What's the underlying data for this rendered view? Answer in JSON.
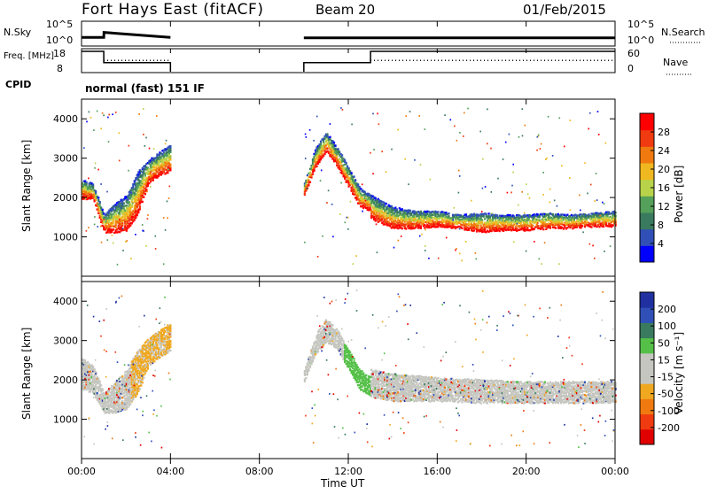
{
  "header": {
    "station": "Fort Hays East (fitACF)",
    "beam": "Beam 20",
    "date": "01/Feb/2015"
  },
  "mode_label": "normal (fast) 151 IF",
  "colors": {
    "gray": "#c6c6c0",
    "power_scale": [
      "#0000ff",
      "#3050b8",
      "#3a7a5e",
      "#55a05a",
      "#b8d34a",
      "#f0b820",
      "#f07a10",
      "#f03a10",
      "#ff0000"
    ],
    "velocity_scale": [
      "#e00000",
      "#f03a10",
      "#f07a10",
      "#f0a820",
      "#c6c6c0",
      "#c6c6c0",
      "#55c048",
      "#3a7a5e",
      "#3050b8",
      "#2030a0"
    ]
  },
  "chart_data": [
    {
      "type": "line",
      "panel": "noise",
      "ylabel_left": "N.Sky",
      "yticks_left": [
        "10^5",
        "10^0"
      ],
      "ylabel_right": "N.Search",
      "yticks_right": [
        "10^5",
        "10^0"
      ],
      "series": [
        {
          "segments": [
            {
              "x": [
                0.0,
                1.0,
                1.01,
                4.0
              ],
              "y": [
                0.35,
                0.35,
                0.55,
                0.35
              ]
            },
            {
              "x": [
                10.0,
                24.0
              ],
              "y": [
                0.33,
                0.33
              ]
            }
          ]
        }
      ]
    },
    {
      "type": "line",
      "panel": "frequency",
      "ylabel_left": "Freq. [MHz]",
      "yticks_left": [
        "18",
        "8"
      ],
      "ylabel_right": "Nave",
      "yticks_right": [
        "60",
        "0"
      ],
      "series": [
        {
          "style": "solid",
          "segments": [
            {
              "x": [
                0.0,
                1.0,
                1.0,
                4.0,
                4.0
              ],
              "y": [
                18,
                18,
                8,
                8,
                0
              ]
            },
            {
              "x": [
                10.0,
                10.0,
                13.0,
                13.0,
                24.0
              ],
              "y": [
                0,
                8,
                8,
                18,
                18
              ]
            }
          ]
        },
        {
          "style": "dotted",
          "segments": [
            {
              "x": [
                1.0,
                4.0
              ],
              "y": [
                10,
                10
              ]
            },
            {
              "x": [
                13.0,
                24.0
              ],
              "y": [
                10,
                10
              ]
            }
          ]
        }
      ]
    },
    {
      "type": "heatmap",
      "panel": "power",
      "ylabel": "Slant Range [km]",
      "ylim": [
        0,
        4500
      ],
      "yticks": [
        1000,
        2000,
        3000,
        4000
      ],
      "colorbar_label": "Power [dB]",
      "colorbar_ticks": [
        "4",
        "8",
        "12",
        "16",
        "20",
        "24",
        "28"
      ],
      "regions": [
        {
          "x": [
            0.0,
            0.5,
            1.0,
            1.5,
            2.0,
            2.5,
            3.0,
            3.5,
            4.0
          ],
          "low": [
            2000,
            2000,
            1150,
            1150,
            1200,
            1600,
            2400,
            2600,
            2700
          ],
          "high": [
            2500,
            2400,
            1600,
            1900,
            2100,
            2700,
            3000,
            3200,
            3400
          ]
        },
        {
          "x": [
            10.0,
            10.5,
            11.0,
            11.5,
            12.0,
            12.5,
            13.0
          ],
          "low": [
            2100,
            2800,
            3200,
            2800,
            2300,
            1800,
            1700
          ],
          "high": [
            2400,
            3300,
            3700,
            3300,
            2800,
            2300,
            2100
          ]
        },
        {
          "x": [
            13.0,
            14.0,
            15.0,
            16.0,
            17.0,
            18.0,
            19.0,
            20.0,
            21.0,
            22.0,
            23.0,
            24.0
          ],
          "low": [
            1500,
            1250,
            1250,
            1300,
            1250,
            1150,
            1200,
            1200,
            1250,
            1250,
            1300,
            1300
          ],
          "high": [
            2100,
            1800,
            1700,
            1700,
            1600,
            1650,
            1600,
            1600,
            1650,
            1600,
            1650,
            1700
          ]
        }
      ]
    },
    {
      "type": "heatmap",
      "panel": "velocity",
      "ylabel": "Slant Range [km]",
      "ylim": [
        0,
        4500
      ],
      "yticks": [
        1000,
        2000,
        3000,
        4000
      ],
      "xlabel": "Time UT",
      "xticks": [
        "00:00",
        "04:00",
        "08:00",
        "12:00",
        "16:00",
        "20:00",
        "00:00"
      ],
      "xlim": [
        0,
        24
      ],
      "colorbar_label": "Velocity [m s⁻¹]",
      "colorbar_ticks": [
        "-200",
        "-100",
        "-50",
        "-15",
        "15",
        "50",
        "100",
        "200"
      ],
      "regions": [
        {
          "x": [
            0.0,
            0.5,
            1.0,
            1.5,
            2.0,
            2.5,
            3.0,
            3.5,
            4.0
          ],
          "low": [
            1800,
            1700,
            1200,
            1200,
            1300,
            1700,
            2400,
            2600,
            2800
          ],
          "high": [
            2600,
            2400,
            1700,
            2000,
            2300,
            2800,
            3100,
            3300,
            3500
          ]
        },
        {
          "x": [
            10.0,
            10.5,
            11.0,
            11.5,
            12.0,
            12.5,
            13.0
          ],
          "low": [
            2000,
            2700,
            3000,
            2800,
            2300,
            1800,
            1600
          ],
          "high": [
            2300,
            3200,
            3600,
            3300,
            2800,
            2300,
            2100
          ]
        },
        {
          "x": [
            13.0,
            14.0,
            16.0,
            18.0,
            20.0,
            22.0,
            24.0
          ],
          "low": [
            1600,
            1500,
            1500,
            1450,
            1450,
            1450,
            1450
          ],
          "high": [
            2300,
            2200,
            2100,
            2050,
            2000,
            2000,
            2000
          ]
        }
      ]
    }
  ]
}
